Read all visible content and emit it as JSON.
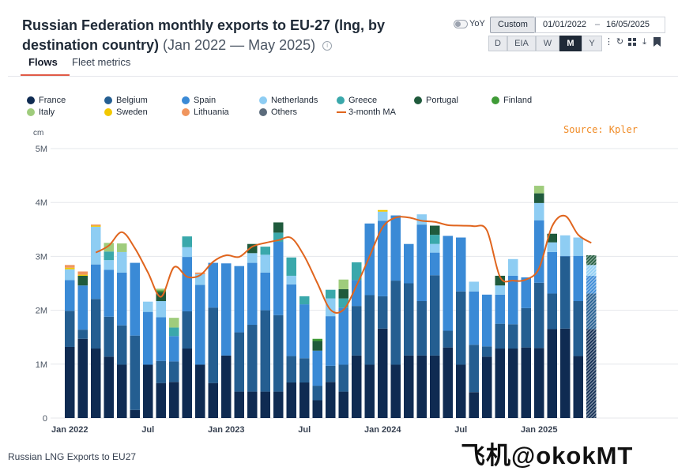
{
  "header": {
    "title": "Russian Federation monthly exports to EU-27 (lng, by destination country)",
    "range": "(Jan 2022 — May 2025)",
    "info_icon": "info-icon"
  },
  "tabs": [
    {
      "label": "Flows",
      "active": true
    },
    {
      "label": "Fleet metrics",
      "active": false
    }
  ],
  "controls": {
    "yoy_label": "YoY",
    "custom_label": "Custom",
    "date_from": "01/01/2022",
    "date_sep": "–",
    "date_to": "16/05/2025",
    "resolutions": [
      {
        "label": "D",
        "active": false
      },
      {
        "label": "EIA",
        "active": false
      },
      {
        "label": "W",
        "active": false
      },
      {
        "label": "M",
        "active": true
      },
      {
        "label": "Y",
        "active": false
      }
    ],
    "tools": [
      "more-vert-icon",
      "refresh-icon",
      "grid-icon",
      "download-icon",
      "bookmark-icon"
    ]
  },
  "source_label": "Source: Kpler",
  "caption": "Russian LNG Exports to EU27",
  "watermark": "飞机@okokMT",
  "chart_data": {
    "type": "bar",
    "stacked": true,
    "unit_label": "cm",
    "x_tick_labels": [
      "Jan 2022",
      "Jul",
      "Jan 2023",
      "Jul",
      "Jan 2024",
      "Jul",
      "Jan 2025"
    ],
    "y_tick_labels": [
      "0",
      "1M",
      "2M",
      "3M",
      "4M",
      "5M"
    ],
    "ylim": [
      0,
      5000000
    ],
    "grid": true,
    "legend_position": "top",
    "categories": [
      "2022-01",
      "2022-02",
      "2022-03",
      "2022-04",
      "2022-05",
      "2022-06",
      "2022-07",
      "2022-08",
      "2022-09",
      "2022-10",
      "2022-11",
      "2022-12",
      "2023-01",
      "2023-02",
      "2023-03",
      "2023-04",
      "2023-05",
      "2023-06",
      "2023-07",
      "2023-08",
      "2023-09",
      "2023-10",
      "2023-11",
      "2023-12",
      "2024-01",
      "2024-02",
      "2024-03",
      "2024-04",
      "2024-05",
      "2024-06",
      "2024-07",
      "2024-08",
      "2024-09",
      "2024-10",
      "2024-11",
      "2024-12",
      "2025-01",
      "2025-02",
      "2025-03",
      "2025-04",
      "2025-05"
    ],
    "series": [
      {
        "name": "France",
        "color": "#0f2b52",
        "values": [
          1320000,
          1470000,
          1290000,
          1140000,
          990000,
          150000,
          990000,
          650000,
          670000,
          1290000,
          990000,
          650000,
          1160000,
          490000,
          490000,
          490000,
          490000,
          660000,
          660000,
          330000,
          670000,
          490000,
          1160000,
          990000,
          1660000,
          990000,
          1160000,
          1160000,
          1160000,
          1310000,
          990000,
          480000,
          1140000,
          1290000,
          1290000,
          1310000,
          1300000,
          1650000,
          1660000,
          1150000,
          1650000
        ]
      },
      {
        "name": "Belgium",
        "color": "#245e91",
        "values": [
          670000,
          170000,
          920000,
          740000,
          730000,
          1380000,
          0,
          410000,
          380000,
          690000,
          0,
          1400000,
          0,
          1100000,
          1240000,
          1510000,
          1420000,
          490000,
          450000,
          270000,
          300000,
          500000,
          920000,
          1290000,
          600000,
          1560000,
          1340000,
          1010000,
          1490000,
          310000,
          1360000,
          880000,
          190000,
          460000,
          450000,
          730000,
          1210000,
          660000,
          1340000,
          1020000,
          660000
        ]
      },
      {
        "name": "Spain",
        "color": "#3a8ad6",
        "values": [
          570000,
          820000,
          640000,
          870000,
          980000,
          1350000,
          980000,
          810000,
          470000,
          1010000,
          1480000,
          830000,
          1710000,
          1230000,
          1150000,
          700000,
          1360000,
          1330000,
          1000000,
          650000,
          920000,
          1060000,
          480000,
          1330000,
          1400000,
          1210000,
          730000,
          1420000,
          420000,
          1760000,
          1000000,
          990000,
          960000,
          540000,
          900000,
          570000,
          1160000,
          770000,
          10000,
          840000,
          330000
        ]
      },
      {
        "name": "Netherlands",
        "color": "#8ecdf3",
        "values": [
          200000,
          0,
          700000,
          180000,
          380000,
          0,
          190000,
          300000,
          0,
          180000,
          200000,
          0,
          0,
          0,
          180000,
          330000,
          0,
          160000,
          0,
          0,
          330000,
          0,
          0,
          0,
          170000,
          0,
          0,
          190000,
          160000,
          0,
          0,
          180000,
          0,
          170000,
          310000,
          0,
          320000,
          180000,
          380000,
          340000,
          200000
        ]
      },
      {
        "name": "Greece",
        "color": "#3aa8ab",
        "values": [
          0,
          0,
          0,
          160000,
          0,
          0,
          0,
          0,
          160000,
          200000,
          0,
          0,
          0,
          0,
          0,
          150000,
          170000,
          340000,
          150000,
          0,
          160000,
          170000,
          330000,
          0,
          0,
          0,
          0,
          0,
          170000,
          0,
          0,
          0,
          0,
          0,
          0,
          0,
          0,
          0,
          0,
          0,
          0
        ]
      },
      {
        "name": "Portugal",
        "color": "#1f5a3c",
        "values": [
          0,
          180000,
          0,
          0,
          0,
          0,
          0,
          170000,
          0,
          0,
          0,
          0,
          0,
          0,
          170000,
          0,
          190000,
          0,
          0,
          180000,
          0,
          170000,
          0,
          0,
          0,
          0,
          0,
          0,
          170000,
          0,
          0,
          0,
          0,
          180000,
          0,
          0,
          180000,
          160000,
          0,
          0,
          180000
        ]
      },
      {
        "name": "Finland",
        "color": "#3f9b36",
        "values": [
          0,
          0,
          0,
          0,
          0,
          0,
          0,
          30000,
          0,
          0,
          0,
          0,
          0,
          0,
          0,
          0,
          0,
          0,
          0,
          40000,
          0,
          0,
          0,
          0,
          0,
          0,
          0,
          0,
          0,
          0,
          0,
          0,
          0,
          0,
          0,
          0,
          0,
          0,
          0,
          0,
          0
        ]
      },
      {
        "name": "Italy",
        "color": "#9fcc7c",
        "values": [
          0,
          0,
          0,
          160000,
          160000,
          0,
          0,
          30000,
          180000,
          0,
          0,
          0,
          0,
          0,
          0,
          0,
          0,
          0,
          0,
          0,
          0,
          180000,
          0,
          0,
          0,
          0,
          0,
          0,
          0,
          0,
          0,
          0,
          0,
          0,
          0,
          0,
          140000,
          0,
          0,
          0,
          0
        ]
      },
      {
        "name": "Sweden",
        "color": "#f2c800",
        "values": [
          30000,
          20000,
          20000,
          0,
          0,
          0,
          0,
          0,
          0,
          0,
          0,
          0,
          0,
          0,
          0,
          0,
          0,
          0,
          0,
          0,
          0,
          0,
          0,
          0,
          30000,
          0,
          0,
          0,
          0,
          0,
          0,
          0,
          0,
          0,
          0,
          0,
          0,
          0,
          0,
          0,
          0
        ]
      },
      {
        "name": "Lithuania",
        "color": "#f0955e",
        "values": [
          50000,
          60000,
          20000,
          0,
          0,
          0,
          0,
          0,
          0,
          0,
          30000,
          0,
          0,
          0,
          0,
          0,
          0,
          0,
          0,
          0,
          0,
          0,
          0,
          0,
          0,
          0,
          0,
          0,
          0,
          0,
          0,
          0,
          0,
          0,
          0,
          0,
          0,
          0,
          0,
          0,
          0
        ]
      },
      {
        "name": "Others",
        "color": "#5b6b7b",
        "values": [
          0,
          0,
          0,
          0,
          0,
          0,
          0,
          0,
          0,
          0,
          0,
          0,
          0,
          0,
          0,
          0,
          0,
          0,
          0,
          0,
          0,
          0,
          0,
          0,
          0,
          0,
          0,
          0,
          0,
          0,
          0,
          0,
          0,
          0,
          0,
          0,
          0,
          0,
          0,
          0,
          0
        ]
      }
    ],
    "partial_last_period": true,
    "moving_average": {
      "name": "3-month MA",
      "color": "#e0651e",
      "values": [
        null,
        null,
        3070000,
        3200000,
        3450000,
        3150000,
        2700000,
        2250000,
        2800000,
        2620000,
        2650000,
        2900000,
        3020000,
        2990000,
        3180000,
        3250000,
        3300000,
        3340000,
        3000000,
        2500000,
        2010000,
        2010000,
        2460000,
        3000000,
        3540000,
        3720000,
        3720000,
        3660000,
        3640000,
        3580000,
        3570000,
        3560000,
        3480000,
        2620000,
        2550000,
        2570000,
        2780000,
        3560000,
        3750000,
        3400000,
        3250000
      ]
    }
  }
}
